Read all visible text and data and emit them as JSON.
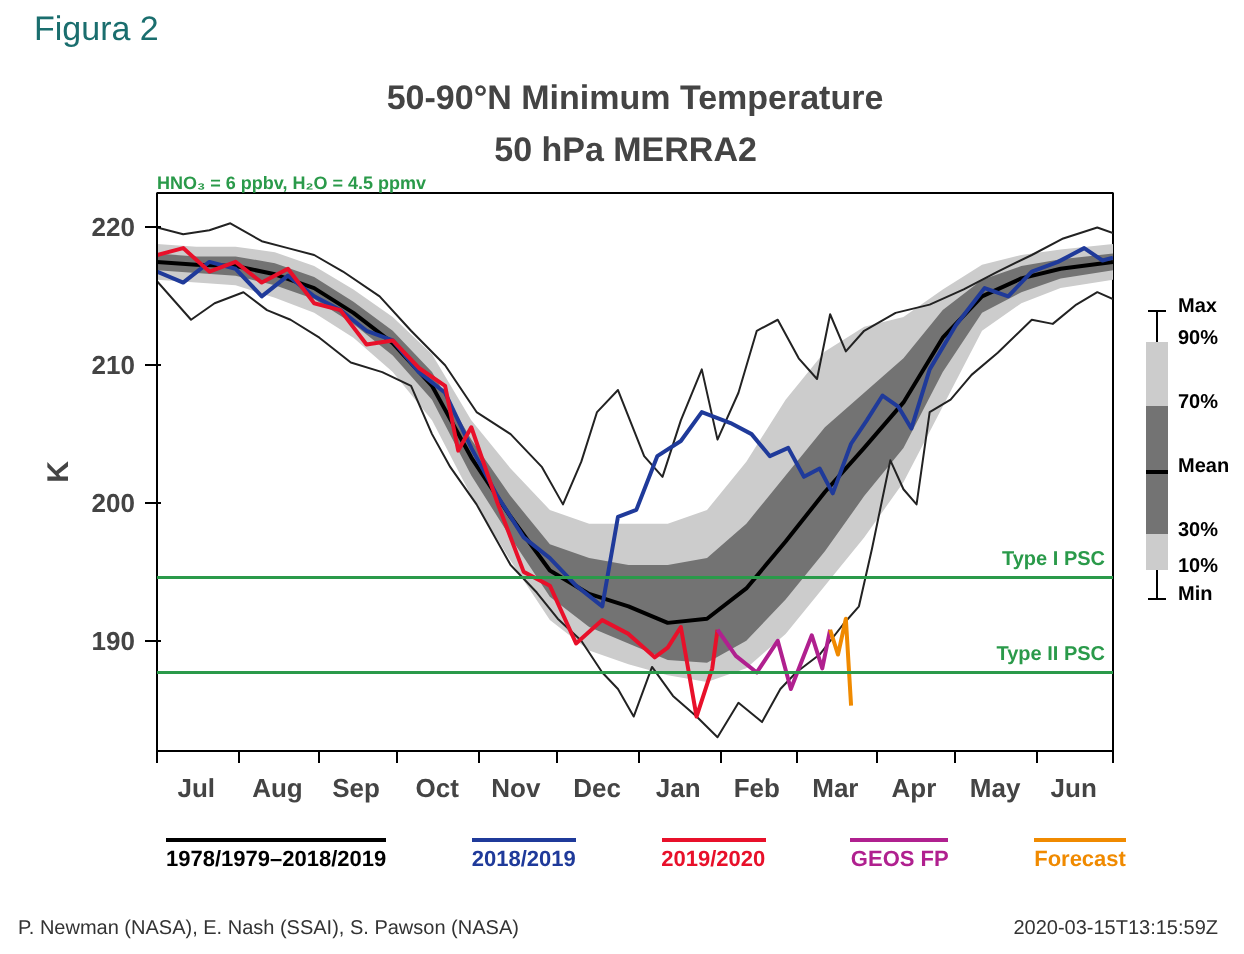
{
  "chart_data": {
    "type": "line",
    "title": "50-90°N Minimum Temperature",
    "subtitle": "50 hPa   MERRA2",
    "ylabel": "K",
    "xlim": [
      "2019-07-01",
      "2020-06-30"
    ],
    "ylim": [
      182,
      222.5
    ],
    "yticks": [
      190,
      200,
      210,
      220
    ],
    "xticks": [
      {
        "value": "2019-07-01",
        "label": null
      },
      {
        "value": "2019-07-16",
        "label": "Jul"
      },
      {
        "value": "2019-08-01",
        "label": null
      },
      {
        "value": "2019-08-16",
        "label": "Aug"
      },
      {
        "value": "2019-09-01",
        "label": null
      },
      {
        "value": "2019-09-15",
        "label": "Sep"
      },
      {
        "value": "2019-10-01",
        "label": null
      },
      {
        "value": "2019-10-16",
        "label": "Oct"
      },
      {
        "value": "2019-11-01",
        "label": null
      },
      {
        "value": "2019-11-15",
        "label": "Nov"
      },
      {
        "value": "2019-12-01",
        "label": null
      },
      {
        "value": "2019-12-16",
        "label": "Dec"
      },
      {
        "value": "2020-01-01",
        "label": null
      },
      {
        "value": "2020-01-16",
        "label": "Jan"
      },
      {
        "value": "2020-02-01",
        "label": null
      },
      {
        "value": "2020-02-15",
        "label": "Feb"
      },
      {
        "value": "2020-03-01",
        "label": null
      },
      {
        "value": "2020-03-16",
        "label": "Mar"
      },
      {
        "value": "2020-04-01",
        "label": null
      },
      {
        "value": "2020-04-15",
        "label": "Apr"
      },
      {
        "value": "2020-05-01",
        "label": null
      },
      {
        "value": "2020-05-16",
        "label": "May"
      },
      {
        "value": "2020-06-01",
        "label": null
      },
      {
        "value": "2020-06-15",
        "label": "Jun"
      },
      {
        "value": "2020-06-30",
        "label": null
      }
    ],
    "grid": false,
    "legend": "bottom",
    "ref_lines": [
      {
        "axis": "y",
        "value": 194.6,
        "label": "Type I PSC",
        "color": "#2a9a4a"
      },
      {
        "axis": "y",
        "value": 187.7,
        "label": "Type II PSC",
        "color": "#2a9a4a"
      }
    ],
    "annotations": [
      "Figura 2",
      "HNO₃ = 6 ppbv, H₂O = 4.5 ppmv",
      "Max",
      "90%",
      "70%",
      "Mean",
      "30%",
      "10%",
      "Min",
      "P. Newman (NASA), E. Nash (SSAI), S. Pawson (NASA)",
      "2020-03-15T13:15:59Z"
    ],
    "series": [
      {
        "color": "#cccccc",
        "x": [
          "2019-07-01",
          "2019-07-16",
          "2019-07-31",
          "2019-08-15",
          "2019-08-30",
          "2019-09-14",
          "2019-09-29",
          "2019-10-14",
          "2019-10-29",
          "2019-11-13",
          "2019-11-28",
          "2019-12-13",
          "2019-12-28",
          "2020-01-12",
          "2020-01-27",
          "2020-02-11",
          "2020-02-26",
          "2020-03-12",
          "2020-03-27",
          "2020-04-11",
          "2020-04-26",
          "2020-05-11",
          "2020-05-26",
          "2020-06-10",
          "2020-06-30"
        ],
        "values": [
          null,
          null,
          null,
          null,
          null,
          null,
          null,
          null,
          null,
          null,
          null,
          null,
          null,
          null,
          null,
          null,
          null,
          null,
          null,
          null,
          null,
          null,
          null,
          null,
          null
        ],
        "upper": [
          218.8,
          218.6,
          218.6,
          218.2,
          217.2,
          215.5,
          213.5,
          210.8,
          206,
          202.5,
          199.5,
          198.5,
          198.5,
          198.5,
          199.5,
          203,
          207.5,
          211,
          212.8,
          213.5,
          215.5,
          217.3,
          218,
          218.4,
          218.8
        ],
        "lower": [
          216.2,
          216,
          215.8,
          214.9,
          213.8,
          212,
          209.5,
          206,
          200.5,
          195.8,
          191.5,
          189.3,
          188.3,
          187.5,
          187,
          188,
          190.5,
          194,
          197.5,
          201.5,
          207,
          212.5,
          214.5,
          215.6,
          216.2
        ]
      },
      {
        "color": "#737373",
        "x": [
          "2019-07-01",
          "2019-07-16",
          "2019-07-31",
          "2019-08-15",
          "2019-08-30",
          "2019-09-14",
          "2019-09-29",
          "2019-10-14",
          "2019-10-29",
          "2019-11-13",
          "2019-11-28",
          "2019-12-13",
          "2019-12-28",
          "2020-01-12",
          "2020-01-27",
          "2020-02-11",
          "2020-02-26",
          "2020-03-12",
          "2020-03-27",
          "2020-04-11",
          "2020-04-26",
          "2020-05-11",
          "2020-05-26",
          "2020-06-10",
          "2020-06-30"
        ],
        "values": [
          null,
          null,
          null,
          null,
          null,
          null,
          null,
          null,
          null,
          null,
          null,
          null,
          null,
          null,
          null,
          null,
          null,
          null,
          null,
          null,
          null,
          null,
          null,
          null,
          null
        ],
        "upper": [
          218.1,
          217.9,
          217.9,
          217.4,
          216.4,
          214.6,
          212.5,
          209.5,
          204.6,
          200.5,
          197,
          196,
          195.5,
          195.5,
          196,
          198.5,
          202,
          205.5,
          208,
          210.5,
          214,
          216.2,
          217.2,
          217.7,
          218.1
        ],
        "lower": [
          216.9,
          216.7,
          216.5,
          215.8,
          214.8,
          213,
          210.7,
          207.5,
          202,
          197.5,
          193.2,
          191,
          189.8,
          188.6,
          188.4,
          190,
          193,
          196.5,
          200.5,
          204,
          209.5,
          213.8,
          215.3,
          216.3,
          216.9
        ]
      },
      {
        "name": "1978/1979–2018/2019",
        "color": "#000000",
        "x": [
          "2019-07-01",
          "2019-07-16",
          "2019-07-31",
          "2019-08-15",
          "2019-08-30",
          "2019-09-14",
          "2019-09-29",
          "2019-10-14",
          "2019-10-29",
          "2019-11-13",
          "2019-11-28",
          "2019-12-13",
          "2019-12-28",
          "2020-01-12",
          "2020-01-27",
          "2020-02-11",
          "2020-02-26",
          "2020-03-12",
          "2020-03-27",
          "2020-04-11",
          "2020-04-26",
          "2020-05-11",
          "2020-05-26",
          "2020-06-10",
          "2020-06-30"
        ],
        "values": [
          217.5,
          217.3,
          217.2,
          216.6,
          215.6,
          213.8,
          211.6,
          208.5,
          203.3,
          199,
          195.1,
          193.4,
          192.5,
          191.3,
          191.6,
          193.8,
          197.2,
          200.8,
          204,
          207.3,
          212,
          215,
          216.3,
          217,
          217.5
        ]
      },
      {
        "color": "#222222",
        "x": [
          "2019-07-01",
          "2019-07-11",
          "2019-07-21",
          "2019-07-29",
          "2019-08-10",
          "2019-08-20",
          "2019-08-30",
          "2019-09-10",
          "2019-09-24",
          "2019-10-06",
          "2019-10-19",
          "2019-10-31",
          "2019-11-13",
          "2019-11-25",
          "2019-12-03",
          "2019-12-10",
          "2019-12-16",
          "2019-12-24",
          "2020-01-03",
          "2020-01-10",
          "2020-01-17",
          "2020-01-25",
          "2020-01-31",
          "2020-02-08",
          "2020-02-15",
          "2020-02-23",
          "2020-03-02",
          "2020-03-09",
          "2020-03-14",
          "2020-03-20",
          "2020-03-27",
          "2020-04-08",
          "2020-04-21",
          "2020-05-04",
          "2020-05-17",
          "2020-05-30",
          "2020-06-11",
          "2020-06-24",
          "2020-06-30"
        ],
        "values": [
          220,
          219.5,
          219.8,
          220.3,
          219,
          218.5,
          218,
          216.8,
          215,
          212.5,
          210,
          206.6,
          205,
          202.6,
          199.9,
          203,
          206.6,
          208.2,
          203.4,
          201.9,
          206,
          209.7,
          204.6,
          208,
          212.5,
          213.3,
          210.5,
          209,
          213.7,
          211,
          212.5,
          213.8,
          214.4,
          215.5,
          216.8,
          218,
          219.2,
          220,
          219.6
        ]
      },
      {
        "color": "#222222",
        "x": [
          "2019-07-01",
          "2019-07-14",
          "2019-07-23",
          "2019-08-03",
          "2019-08-12",
          "2019-08-21",
          "2019-09-01",
          "2019-09-13",
          "2019-09-25",
          "2019-10-06",
          "2019-10-14",
          "2019-10-21",
          "2019-10-31",
          "2019-11-13",
          "2019-11-23",
          "2019-12-01",
          "2019-12-10",
          "2019-12-18",
          "2019-12-24",
          "2019-12-30",
          "2020-01-06",
          "2020-01-14",
          "2020-01-23",
          "2020-01-31",
          "2020-02-08",
          "2020-02-17",
          "2020-02-24",
          "2020-03-01",
          "2020-03-10",
          "2020-03-19",
          "2020-03-25",
          "2020-03-30",
          "2020-04-06",
          "2020-04-11",
          "2020-04-16",
          "2020-04-21",
          "2020-04-29",
          "2020-05-07",
          "2020-05-17",
          "2020-05-30",
          "2020-06-07",
          "2020-06-16",
          "2020-06-24",
          "2020-06-30"
        ],
        "values": [
          216.1,
          213.3,
          214.5,
          215.3,
          214,
          213.3,
          212,
          210.2,
          209.5,
          208.5,
          205,
          202.6,
          199.9,
          195.5,
          193.5,
          191.6,
          190,
          187.7,
          186.5,
          184.5,
          188.1,
          186,
          184.5,
          183,
          185.5,
          184.1,
          186.5,
          187.7,
          189,
          191.2,
          192.5,
          196.7,
          203.1,
          201,
          199.9,
          206.6,
          207.5,
          209.3,
          210.9,
          213.3,
          213,
          214.4,
          215.3,
          214.8
        ]
      },
      {
        "name": "2018/2019",
        "color": "#1f3a9a",
        "x": [
          "2019-07-01",
          "2019-07-11",
          "2019-07-21",
          "2019-07-31",
          "2019-08-10",
          "2019-08-20",
          "2019-08-30",
          "2019-09-09",
          "2019-09-19",
          "2019-09-29",
          "2019-10-09",
          "2019-10-19",
          "2019-10-29",
          "2019-11-08",
          "2019-11-18",
          "2019-11-28",
          "2019-12-08",
          "2019-12-18",
          "2019-12-24",
          "2019-12-31",
          "2020-01-08",
          "2020-01-17",
          "2020-01-25",
          "2020-02-05",
          "2020-02-13",
          "2020-02-20",
          "2020-02-27",
          "2020-03-04",
          "2020-03-10",
          "2020-03-15",
          "2020-03-22",
          "2020-03-28",
          "2020-04-03",
          "2020-04-09",
          "2020-04-14",
          "2020-04-21",
          "2020-05-01",
          "2020-05-12",
          "2020-05-21",
          "2020-05-30",
          "2020-06-09",
          "2020-06-19",
          "2020-06-26",
          "2020-06-30"
        ],
        "values": [
          216.8,
          216,
          217.5,
          217,
          215,
          216.5,
          215,
          214,
          212.5,
          211.8,
          209.5,
          208,
          204,
          200.5,
          197.5,
          196,
          194,
          192.5,
          199,
          199.5,
          203.4,
          204.5,
          206.6,
          205.8,
          205,
          203.4,
          204,
          201.9,
          202.5,
          200.7,
          204.3,
          206,
          207.8,
          207,
          205.4,
          209.7,
          212.9,
          215.6,
          215,
          216.8,
          217.5,
          218.5,
          217.6,
          217.8
        ]
      },
      {
        "name": "2019/2020",
        "color": "#e8102a",
        "x": [
          "2019-07-01",
          "2019-07-11",
          "2019-07-21",
          "2019-07-31",
          "2019-08-10",
          "2019-08-20",
          "2019-08-30",
          "2019-09-09",
          "2019-09-19",
          "2019-09-29",
          "2019-10-09",
          "2019-10-19",
          "2019-10-24",
          "2019-10-29",
          "2019-11-08",
          "2019-11-18",
          "2019-11-28",
          "2019-12-08",
          "2019-12-18",
          "2019-12-28",
          "2020-01-07",
          "2020-01-12",
          "2020-01-17",
          "2020-01-23",
          "2020-01-29",
          "2020-01-31"
        ],
        "values": [
          218,
          218.5,
          216.8,
          217.5,
          216,
          217,
          214.5,
          214,
          211.5,
          211.8,
          209.8,
          208.5,
          203.8,
          205.5,
          200,
          195,
          194,
          189.8,
          191.5,
          190.5,
          188.8,
          189.5,
          191,
          184.5,
          188,
          190.8
        ]
      },
      {
        "name": "GEOS FP",
        "color": "#b0208f",
        "x": [
          "2020-01-31",
          "2020-02-07",
          "2020-02-15",
          "2020-02-23",
          "2020-02-28",
          "2020-03-07",
          "2020-03-11",
          "2020-03-14"
        ],
        "values": [
          190.8,
          188.9,
          187.7,
          190,
          186.5,
          190.4,
          188,
          190.8
        ]
      },
      {
        "name": "Forecast",
        "color": "#f08a00",
        "x": [
          "2020-03-14",
          "2020-03-17",
          "2020-03-20",
          "2020-03-22"
        ],
        "values": [
          190.8,
          189,
          191.6,
          185.3
        ]
      }
    ]
  }
}
